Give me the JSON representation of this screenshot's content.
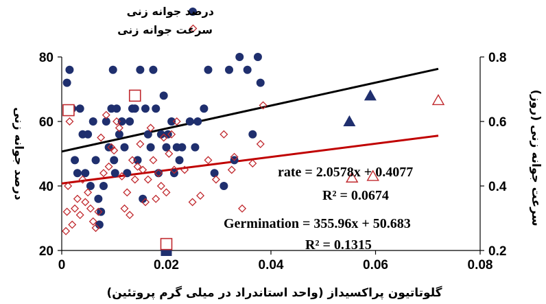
{
  "chart_data": {
    "type": "scatter",
    "xlabel": "گلوتاتیون پراکسیداز (واحد استاندراد در میلی گرم پروتئین)",
    "ylabel": "درصد جوانه زنی",
    "y2label": "سرعت جوانه زنی (روز)",
    "xlim": [
      0,
      0.08
    ],
    "ylim": [
      20,
      80
    ],
    "y2lim": [
      0.2,
      0.8
    ],
    "xticks": [
      "0",
      "0.02",
      "0.04",
      "0.06",
      "0.08"
    ],
    "yticks": [
      "20",
      "40",
      "60",
      "80"
    ],
    "y2ticks": [
      "0.2",
      "0.4",
      "0.6",
      "0.8"
    ],
    "grid": false,
    "legend_position": "top-center",
    "series": [
      {
        "name": "درصد جوانه زنی",
        "axis": "left",
        "color": "#1f2f6e",
        "marker": "circle",
        "points": [
          [
            0.001,
            72
          ],
          [
            0.0015,
            76
          ],
          [
            0.002,
            64
          ],
          [
            0.0025,
            48
          ],
          [
            0.003,
            44
          ],
          [
            0.0035,
            64
          ],
          [
            0.004,
            56
          ],
          [
            0.0045,
            44
          ],
          [
            0.005,
            56
          ],
          [
            0.0055,
            40
          ],
          [
            0.006,
            60
          ],
          [
            0.0065,
            48
          ],
          [
            0.007,
            36
          ],
          [
            0.0072,
            28
          ],
          [
            0.0075,
            32
          ],
          [
            0.008,
            40
          ],
          [
            0.0085,
            60
          ],
          [
            0.009,
            52
          ],
          [
            0.0095,
            64
          ],
          [
            0.0098,
            76
          ],
          [
            0.01,
            48
          ],
          [
            0.0102,
            44
          ],
          [
            0.0105,
            64
          ],
          [
            0.011,
            56
          ],
          [
            0.0115,
            60
          ],
          [
            0.012,
            52
          ],
          [
            0.0125,
            44
          ],
          [
            0.013,
            60
          ],
          [
            0.0135,
            64
          ],
          [
            0.014,
            64
          ],
          [
            0.0145,
            48
          ],
          [
            0.015,
            76
          ],
          [
            0.0155,
            36
          ],
          [
            0.016,
            64
          ],
          [
            0.0165,
            56
          ],
          [
            0.017,
            52
          ],
          [
            0.0175,
            76
          ],
          [
            0.018,
            64
          ],
          [
            0.0185,
            44
          ],
          [
            0.019,
            56
          ],
          [
            0.0195,
            68
          ],
          [
            0.02,
            52
          ],
          [
            0.0203,
            56
          ],
          [
            0.021,
            60
          ],
          [
            0.0215,
            44
          ],
          [
            0.022,
            52
          ],
          [
            0.0225,
            48
          ],
          [
            0.023,
            52
          ],
          [
            0.0245,
            60
          ],
          [
            0.0255,
            52
          ],
          [
            0.026,
            60
          ],
          [
            0.0272,
            64
          ],
          [
            0.028,
            76
          ],
          [
            0.0292,
            44
          ],
          [
            0.031,
            40
          ],
          [
            0.032,
            76
          ],
          [
            0.033,
            48
          ],
          [
            0.034,
            80
          ],
          [
            0.0355,
            76
          ],
          [
            0.0365,
            56
          ],
          [
            0.0375,
            80
          ],
          [
            0.038,
            72
          ]
        ]
      },
      {
        "name": "سرعت جوانه زنی",
        "axis": "right",
        "color": "#c0282d",
        "marker": "diamond",
        "points": [
          [
            0.0008,
            0.26
          ],
          [
            0.001,
            0.32
          ],
          [
            0.0012,
            0.4
          ],
          [
            0.0015,
            0.6
          ],
          [
            0.002,
            0.28
          ],
          [
            0.0025,
            0.33
          ],
          [
            0.003,
            0.36
          ],
          [
            0.0035,
            0.31
          ],
          [
            0.004,
            0.42
          ],
          [
            0.0045,
            0.35
          ],
          [
            0.005,
            0.38
          ],
          [
            0.0055,
            0.33
          ],
          [
            0.006,
            0.29
          ],
          [
            0.0065,
            0.27
          ],
          [
            0.007,
            0.32
          ],
          [
            0.0075,
            0.55
          ],
          [
            0.008,
            0.44
          ],
          [
            0.0085,
            0.62
          ],
          [
            0.009,
            0.46
          ],
          [
            0.0095,
            0.52
          ],
          [
            0.01,
            0.51
          ],
          [
            0.0105,
            0.6
          ],
          [
            0.011,
            0.58
          ],
          [
            0.0115,
            0.43
          ],
          [
            0.012,
            0.33
          ],
          [
            0.0125,
            0.38
          ],
          [
            0.013,
            0.31
          ],
          [
            0.0135,
            0.48
          ],
          [
            0.014,
            0.42
          ],
          [
            0.0145,
            0.46
          ],
          [
            0.015,
            0.53
          ],
          [
            0.0155,
            0.45
          ],
          [
            0.016,
            0.35
          ],
          [
            0.0165,
            0.42
          ],
          [
            0.017,
            0.58
          ],
          [
            0.0175,
            0.48
          ],
          [
            0.018,
            0.36
          ],
          [
            0.0185,
            0.44
          ],
          [
            0.019,
            0.4
          ],
          [
            0.0195,
            0.55
          ],
          [
            0.02,
            0.38
          ],
          [
            0.0205,
            0.5
          ],
          [
            0.021,
            0.56
          ],
          [
            0.0215,
            0.45
          ],
          [
            0.022,
            0.6
          ],
          [
            0.0235,
            0.45
          ],
          [
            0.025,
            0.35
          ],
          [
            0.0265,
            0.37
          ],
          [
            0.028,
            0.48
          ],
          [
            0.0295,
            0.42
          ],
          [
            0.031,
            0.56
          ],
          [
            0.0325,
            0.45
          ],
          [
            0.033,
            0.49
          ],
          [
            0.0345,
            0.33
          ],
          [
            0.0365,
            0.47
          ],
          [
            0.038,
            0.53
          ],
          [
            0.0385,
            0.65
          ]
        ]
      },
      {
        "name": "",
        "axis": "left",
        "color": "#1f2f6e",
        "marker": "triangle",
        "points": [
          [
            0.055,
            60
          ],
          [
            0.059,
            68
          ]
        ]
      },
      {
        "name": "",
        "axis": "right",
        "color": "#c0282d",
        "marker": "triangle-open",
        "points": [
          [
            0.0555,
            0.425
          ],
          [
            0.0595,
            0.43
          ],
          [
            0.072,
            0.665
          ]
        ]
      },
      {
        "name": "",
        "axis": "left",
        "color": "#1f2f6e",
        "marker": "square",
        "points": [
          [
            0.02,
            20
          ]
        ]
      },
      {
        "name": "",
        "axis": "right",
        "color": "#c0282d",
        "marker": "square-open",
        "points": [
          [
            0.0013,
            0.635
          ],
          [
            0.014,
            0.68
          ],
          [
            0.02,
            0.22
          ]
        ]
      }
    ],
    "trendlines": [
      {
        "axis": "left",
        "color": "#000000",
        "slope": 355.96,
        "intercept": 50.683,
        "x_range": [
          0,
          0.072
        ]
      },
      {
        "axis": "right",
        "color": "#c00000",
        "slope": 2.0578,
        "intercept": 0.4077,
        "x_range": [
          0,
          0.072
        ]
      }
    ],
    "annotations": {
      "rate_eq": "rate = 2.0578x + 0.4077",
      "rate_r2": "R² = 0.0674",
      "germ_eq": "Germination  = 355.96x + 50.683",
      "germ_r2": "R² = 0.1315"
    }
  }
}
